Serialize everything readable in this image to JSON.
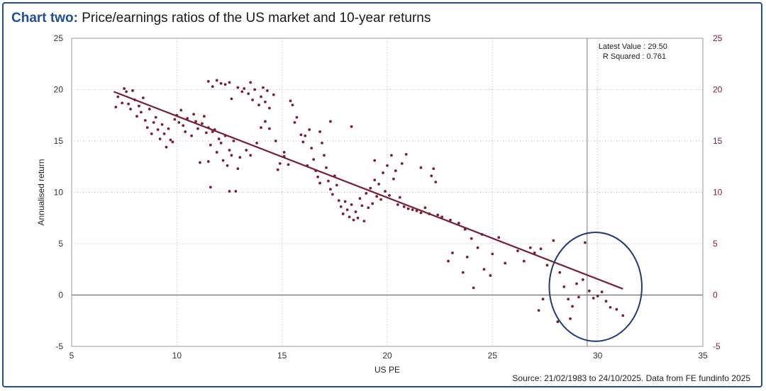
{
  "header": {
    "title_lead": "Chart two:",
    "title_rest": " Price/earnings ratios of the US market and 10-year returns"
  },
  "footer": {
    "source": "Source: 21/02/1983 to 24/10/2025. Data from FE fundinfo 2025"
  },
  "colors": {
    "points": "#7a1e35",
    "trendline": "#7a1e35",
    "right_axis": "#7a1e35",
    "circle": "#1f3a78",
    "frame": "#1f4e9c"
  },
  "chart_data": {
    "type": "scatter",
    "xlabel": "US PE",
    "ylabel": "Annualised return",
    "xlim": [
      5,
      35
    ],
    "ylim": [
      -5,
      25
    ],
    "x_ticks": [
      "5",
      "10",
      "15",
      "20",
      "25",
      "30",
      "35"
    ],
    "y_ticks": [
      "-5",
      "0",
      "5",
      "10",
      "15",
      "20",
      "25"
    ],
    "y2_ticks": [
      "-5",
      "0",
      "5",
      "10",
      "15",
      "20",
      "25"
    ],
    "grid": "dotted",
    "trendline": {
      "x": [
        7.0,
        31.2
      ],
      "y": [
        19.8,
        0.6
      ]
    },
    "latest_value_line_x": 29.5,
    "annotation": {
      "latest_value": "Latest Value  :  29.50",
      "r_squared": "R Squared  :  0.761"
    },
    "highlight_circle": {
      "cx": 29.9,
      "cy": 0.8,
      "rx": 2.2,
      "ry": 5.3
    },
    "points": [
      [
        7.1,
        18.3
      ],
      [
        7.2,
        19.3
      ],
      [
        7.4,
        18.7
      ],
      [
        7.5,
        20.1
      ],
      [
        7.6,
        19.8
      ],
      [
        7.7,
        18.6
      ],
      [
        7.8,
        18.1
      ],
      [
        7.9,
        19.9
      ],
      [
        8.0,
        19.0
      ],
      [
        8.1,
        17.4
      ],
      [
        8.2,
        18.4
      ],
      [
        8.3,
        17.8
      ],
      [
        8.4,
        19.2
      ],
      [
        8.5,
        17.0
      ],
      [
        8.6,
        16.3
      ],
      [
        8.7,
        18.1
      ],
      [
        8.8,
        15.7
      ],
      [
        8.9,
        16.8
      ],
      [
        9.0,
        17.3
      ],
      [
        9.1,
        16.1
      ],
      [
        9.2,
        15.2
      ],
      [
        9.3,
        16.6
      ],
      [
        9.4,
        15.7
      ],
      [
        9.5,
        14.4
      ],
      [
        9.6,
        16.2
      ],
      [
        9.7,
        15.1
      ],
      [
        9.8,
        14.9
      ],
      [
        9.9,
        17.1
      ],
      [
        10.0,
        17.5
      ],
      [
        10.1,
        16.8
      ],
      [
        10.2,
        18.0
      ],
      [
        10.3,
        16.5
      ],
      [
        10.4,
        15.9
      ],
      [
        10.5,
        17.2
      ],
      [
        10.7,
        15.5
      ],
      [
        10.8,
        17.6
      ],
      [
        10.9,
        16.9
      ],
      [
        11.0,
        16.2
      ],
      [
        11.2,
        16.7
      ],
      [
        11.3,
        17.4
      ],
      [
        11.4,
        15.8
      ],
      [
        11.5,
        16.3
      ],
      [
        11.6,
        14.6
      ],
      [
        11.7,
        15.9
      ],
      [
        11.8,
        16.1
      ],
      [
        11.9,
        13.9
      ],
      [
        12.0,
        15.2
      ],
      [
        12.1,
        14.8
      ],
      [
        12.2,
        13.1
      ],
      [
        12.3,
        15.5
      ],
      [
        12.5,
        14.1
      ],
      [
        12.6,
        13.6
      ],
      [
        12.7,
        15.0
      ],
      [
        11.1,
        12.9
      ],
      [
        11.5,
        13.0
      ],
      [
        12.4,
        12.6
      ],
      [
        12.9,
        12.3
      ],
      [
        11.5,
        20.8
      ],
      [
        11.7,
        20.3
      ],
      [
        11.9,
        20.9
      ],
      [
        12.1,
        20.6
      ],
      [
        12.3,
        20.5
      ],
      [
        12.5,
        20.7
      ],
      [
        12.6,
        19.1
      ],
      [
        12.9,
        20.2
      ],
      [
        13.1,
        19.8
      ],
      [
        13.2,
        20.1
      ],
      [
        13.4,
        19.6
      ],
      [
        13.5,
        20.7
      ],
      [
        13.6,
        19.0
      ],
      [
        13.7,
        20.0
      ],
      [
        13.9,
        18.5
      ],
      [
        14.0,
        19.3
      ],
      [
        14.1,
        20.2
      ],
      [
        14.2,
        18.8
      ],
      [
        14.3,
        19.9
      ],
      [
        14.4,
        18.2
      ],
      [
        14.6,
        19.5
      ],
      [
        11.6,
        10.5
      ],
      [
        12.5,
        10.1
      ],
      [
        12.8,
        10.1
      ],
      [
        13.0,
        13.4
      ],
      [
        13.3,
        14.1
      ],
      [
        13.5,
        13.6
      ],
      [
        13.8,
        14.8
      ],
      [
        14.0,
        16.3
      ],
      [
        14.2,
        16.9
      ],
      [
        14.4,
        16.2
      ],
      [
        14.7,
        15.0
      ],
      [
        14.9,
        12.8
      ],
      [
        15.1,
        13.5
      ],
      [
        15.3,
        12.7
      ],
      [
        15.4,
        18.9
      ],
      [
        15.5,
        18.5
      ],
      [
        15.6,
        16.8
      ],
      [
        15.7,
        17.3
      ],
      [
        15.9,
        15.6
      ],
      [
        16.0,
        14.9
      ],
      [
        16.1,
        15.5
      ],
      [
        16.2,
        12.6
      ],
      [
        16.3,
        16.1
      ],
      [
        16.4,
        14.3
      ],
      [
        16.5,
        13.2
      ],
      [
        16.6,
        12.1
      ],
      [
        16.7,
        11.5
      ],
      [
        16.8,
        10.9
      ],
      [
        16.9,
        14.8
      ],
      [
        17.0,
        13.6
      ],
      [
        17.1,
        12.4
      ],
      [
        17.2,
        11.1
      ],
      [
        17.3,
        10.3
      ],
      [
        17.4,
        9.8
      ],
      [
        17.5,
        11.6
      ],
      [
        17.6,
        10.7
      ],
      [
        17.7,
        9.2
      ],
      [
        17.8,
        8.6
      ],
      [
        17.9,
        7.9
      ],
      [
        18.0,
        9.1
      ],
      [
        18.1,
        8.3
      ],
      [
        18.2,
        7.6
      ],
      [
        18.3,
        8.8
      ],
      [
        18.4,
        7.3
      ],
      [
        18.5,
        8.1
      ],
      [
        18.6,
        7.5
      ],
      [
        18.7,
        9.4
      ],
      [
        18.8,
        8.7
      ],
      [
        18.9,
        7.2
      ],
      [
        19.0,
        9.9
      ],
      [
        19.1,
        8.5
      ],
      [
        19.2,
        10.4
      ],
      [
        19.3,
        8.9
      ],
      [
        19.4,
        11.2
      ],
      [
        19.5,
        9.6
      ],
      [
        19.6,
        10.8
      ],
      [
        19.7,
        9.3
      ],
      [
        19.8,
        11.9
      ],
      [
        19.9,
        10.1
      ],
      [
        20.0,
        12.6
      ],
      [
        20.1,
        9.7
      ],
      [
        20.2,
        13.6
      ],
      [
        20.3,
        11.3
      ],
      [
        20.4,
        12.1
      ],
      [
        20.5,
        8.8
      ],
      [
        20.6,
        9.5
      ],
      [
        20.7,
        12.8
      ],
      [
        20.8,
        8.6
      ],
      [
        21.0,
        8.4
      ],
      [
        21.2,
        8.3
      ],
      [
        21.4,
        8.2
      ],
      [
        21.6,
        8.0
      ],
      [
        21.8,
        8.5
      ],
      [
        22.0,
        7.9
      ],
      [
        22.1,
        11.6
      ],
      [
        22.2,
        12.3
      ],
      [
        22.3,
        11.0
      ],
      [
        22.4,
        7.8
      ],
      [
        22.6,
        7.6
      ],
      [
        23.0,
        7.3
      ],
      [
        23.4,
        7.0
      ],
      [
        23.7,
        6.4
      ],
      [
        24.0,
        5.5
      ],
      [
        24.3,
        4.6
      ],
      [
        24.5,
        5.9
      ],
      [
        23.1,
        4.1
      ],
      [
        23.8,
        3.7
      ],
      [
        24.1,
        0.7
      ],
      [
        24.6,
        2.5
      ],
      [
        25.0,
        4.0
      ],
      [
        25.3,
        5.6
      ],
      [
        25.6,
        3.1
      ],
      [
        26.2,
        4.3
      ],
      [
        26.5,
        3.3
      ],
      [
        26.8,
        4.6
      ],
      [
        27.0,
        4.1
      ],
      [
        27.3,
        4.5
      ],
      [
        27.6,
        2.9
      ],
      [
        27.9,
        5.3
      ],
      [
        28.2,
        2.2
      ],
      [
        28.4,
        0.8
      ],
      [
        28.6,
        -0.4
      ],
      [
        28.8,
        -1.1
      ],
      [
        29.0,
        1.1
      ],
      [
        29.3,
        1.5
      ],
      [
        29.6,
        0.4
      ],
      [
        29.8,
        -0.3
      ],
      [
        30.0,
        -0.1
      ],
      [
        30.2,
        0.3
      ],
      [
        30.4,
        -0.6
      ],
      [
        30.6,
        -1.2
      ],
      [
        30.9,
        -1.4
      ],
      [
        31.2,
        -2.0
      ],
      [
        27.2,
        -1.5
      ],
      [
        28.1,
        -2.6
      ],
      [
        29.1,
        -0.2
      ],
      [
        29.4,
        5.1
      ],
      [
        27.4,
        -0.4
      ],
      [
        28.7,
        -2.3
      ],
      [
        24.9,
        1.9
      ],
      [
        23.6,
        2.2
      ],
      [
        22.9,
        3.3
      ],
      [
        17.3,
        16.9
      ],
      [
        18.3,
        16.4
      ],
      [
        16.8,
        15.9
      ],
      [
        19.4,
        13.1
      ],
      [
        20.9,
        13.7
      ],
      [
        21.6,
        12.4
      ],
      [
        15.1,
        13.9
      ],
      [
        14.8,
        12.2
      ]
    ]
  }
}
